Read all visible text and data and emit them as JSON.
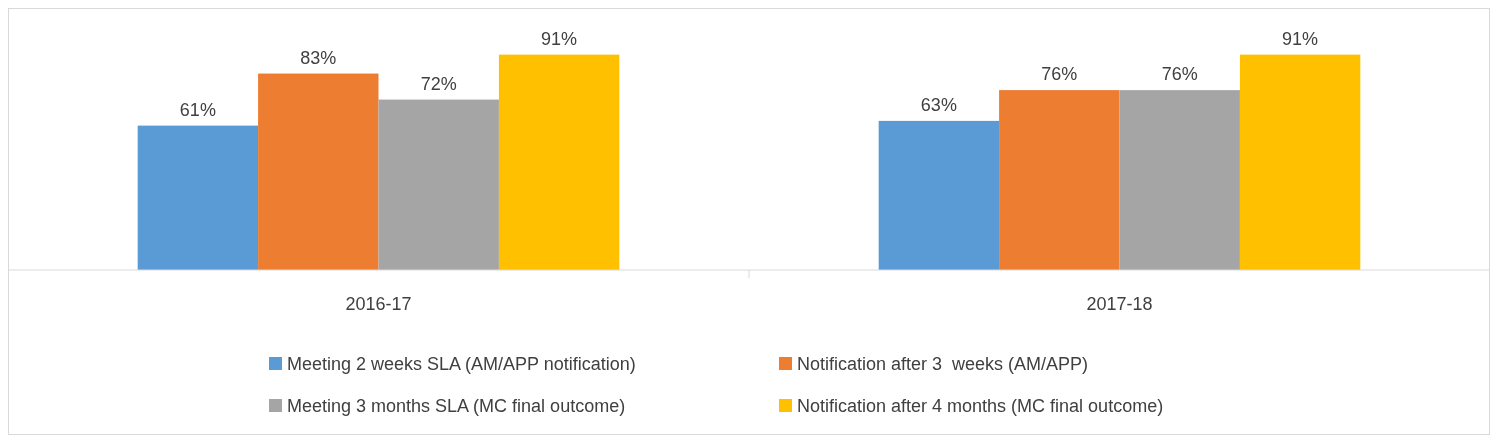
{
  "chart_data": {
    "type": "bar",
    "categories": [
      "2016-17",
      "2017-18"
    ],
    "series": [
      {
        "name": "Meeting 2 weeks SLA (AM/APP notification)",
        "color": "#5b9bd5",
        "values": [
          61,
          63
        ],
        "value_labels": [
          "61%",
          "63%"
        ]
      },
      {
        "name": "Notification after 3  weeks (AM/APP)",
        "color": "#ed7d31",
        "values": [
          83,
          76
        ],
        "value_labels": [
          "83%",
          "76%"
        ]
      },
      {
        "name": "Meeting 3 months SLA (MC final outcome)",
        "color": "#a5a5a5",
        "values": [
          72,
          76
        ],
        "value_labels": [
          "72%",
          "76%"
        ]
      },
      {
        "name": "Notification after 4 months (MC final outcome)",
        "color": "#ffc000",
        "values": [
          91,
          91
        ],
        "value_labels": [
          "91%",
          "91%"
        ]
      }
    ],
    "legend": "bottom"
  }
}
